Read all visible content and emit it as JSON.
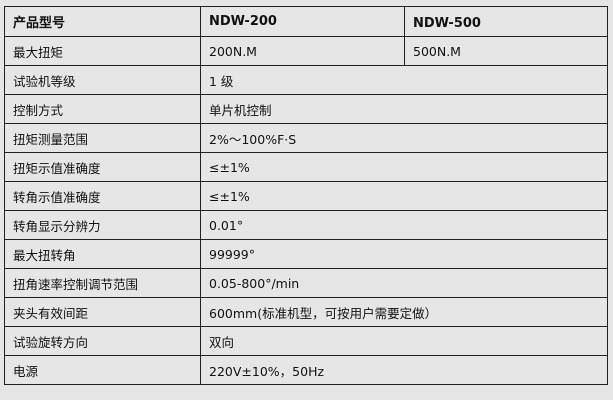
{
  "header": {
    "label": "产品型号",
    "models": [
      "NDW-200",
      "NDW-500"
    ]
  },
  "max_torque": {
    "label": "最大扭矩",
    "values": [
      "200N.M",
      "500N.M"
    ]
  },
  "rows": [
    {
      "label": "试验机等级",
      "value": "1 级"
    },
    {
      "label": "控制方式",
      "value": "单片机控制"
    },
    {
      "label": "扭矩测量范围",
      "value": "2%～100%F·S"
    },
    {
      "label": "扭矩示值准确度",
      "value": "≤±1%"
    },
    {
      "label": "转角示值准确度",
      "value": "≤±1%"
    },
    {
      "label": "转角显示分辨力",
      "value": "0.01°"
    },
    {
      "label": "最大扭转角",
      "value": "99999°"
    },
    {
      "label": "扭角速率控制调节范围",
      "value": "0.05-800°/min"
    },
    {
      "label": "夹头有效间距",
      "value": "600mm(标准机型，可按用户需要定做）"
    },
    {
      "label": "试验旋转方向",
      "value": "双向"
    },
    {
      "label": "电源",
      "value": "220V±10%，50Hz"
    }
  ]
}
